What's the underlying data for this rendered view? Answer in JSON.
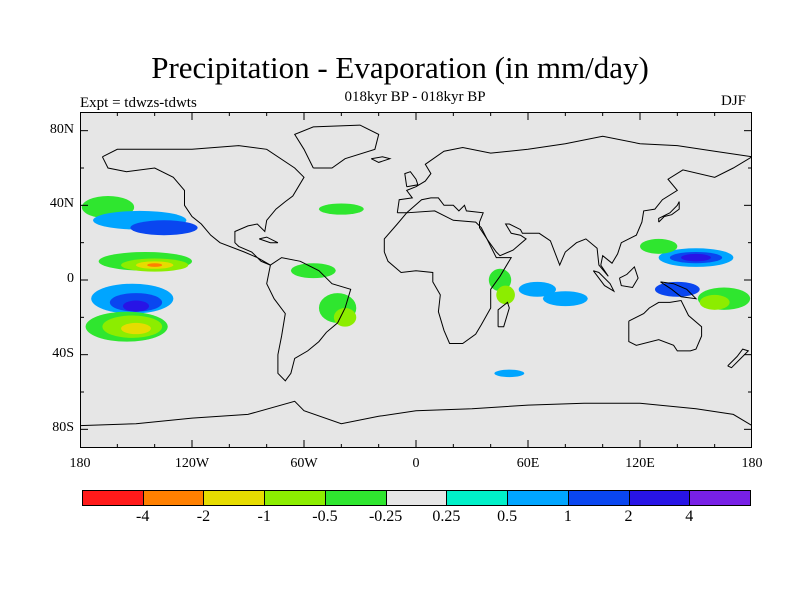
{
  "figure": {
    "title": "Precipitation - Evaporation (in mm/day)",
    "subtitle": "018kyr BP - 018kyr BP",
    "experiment": "Expt = tdwzs-tdwts",
    "season": "DJF"
  },
  "axes": {
    "lon_labels": [
      {
        "lon": -180,
        "text": "180"
      },
      {
        "lon": -120,
        "text": "120W"
      },
      {
        "lon": -60,
        "text": "60W"
      },
      {
        "lon": 0,
        "text": "0"
      },
      {
        "lon": 60,
        "text": "60E"
      },
      {
        "lon": 120,
        "text": "120E"
      },
      {
        "lon": 180,
        "text": "180"
      }
    ],
    "lat_labels": [
      {
        "lat": 80,
        "text": "80N"
      },
      {
        "lat": 40,
        "text": "40N"
      },
      {
        "lat": 0,
        "text": "0"
      },
      {
        "lat": -40,
        "text": "40S"
      },
      {
        "lat": -80,
        "text": "80S"
      }
    ],
    "lon_range": [
      -180,
      180
    ],
    "lat_range": [
      -90,
      90
    ]
  },
  "colorbar": {
    "colors": [
      "#ff1a1a",
      "#ff8000",
      "#e6dc00",
      "#8ced00",
      "#2fe62f",
      "#e6e6e6",
      "#00f0c8",
      "#00a5ff",
      "#0a46f0",
      "#2814e6",
      "#7820e6"
    ],
    "labels": [
      "-4",
      "-2",
      "-1",
      "-0.5",
      "-0.25",
      "0.25",
      "0.5",
      "1",
      "2",
      "4"
    ]
  },
  "chart_data": {
    "type": "heatmap",
    "title": "Precipitation - Evaporation (in mm/day)",
    "subtitle": "018kyr BP - 018kyr BP",
    "season": "DJF",
    "levels": [
      -4,
      -2,
      -1,
      -0.5,
      -0.25,
      0.25,
      0.5,
      1,
      2,
      4
    ],
    "regions": [
      {
        "lon": -165,
        "lat": 39,
        "rlon": 14,
        "rlat": 6,
        "value": -0.5
      },
      {
        "lon": -148,
        "lat": 32,
        "rlon": 25,
        "rlat": 5,
        "value": 0.5
      },
      {
        "lon": -135,
        "lat": 28,
        "rlon": 18,
        "rlat": 4,
        "value": 1
      },
      {
        "lon": -145,
        "lat": 10,
        "rlon": 25,
        "rlat": 5,
        "value": -0.5
      },
      {
        "lon": -140,
        "lat": 8,
        "rlon": 18,
        "rlat": 3.5,
        "value": -1
      },
      {
        "lon": -140,
        "lat": 8,
        "rlon": 10,
        "rlat": 2,
        "value": -2
      },
      {
        "lon": -140,
        "lat": 8,
        "rlon": 4,
        "rlat": 1,
        "value": -4
      },
      {
        "lon": -152,
        "lat": -10,
        "rlon": 22,
        "rlat": 8,
        "value": 0.5
      },
      {
        "lon": -150,
        "lat": -12,
        "rlon": 14,
        "rlat": 5,
        "value": 1
      },
      {
        "lon": -150,
        "lat": -14,
        "rlon": 7,
        "rlat": 3,
        "value": 2
      },
      {
        "lon": -155,
        "lat": -25,
        "rlon": 22,
        "rlat": 8,
        "value": -0.5
      },
      {
        "lon": -152,
        "lat": -25,
        "rlon": 16,
        "rlat": 6,
        "value": -1
      },
      {
        "lon": -150,
        "lat": -26,
        "rlon": 8,
        "rlat": 3,
        "value": -2
      },
      {
        "lon": -42,
        "lat": -15,
        "rlon": 10,
        "rlat": 8,
        "value": -0.5
      },
      {
        "lon": -38,
        "lat": -20,
        "rlon": 6,
        "rlat": 5,
        "value": -1
      },
      {
        "lon": -55,
        "lat": 5,
        "rlon": 12,
        "rlat": 4,
        "value": -0.5
      },
      {
        "lon": -40,
        "lat": 38,
        "rlon": 12,
        "rlat": 3,
        "value": -0.5
      },
      {
        "lon": 45,
        "lat": 0,
        "rlon": 6,
        "rlat": 6,
        "value": -0.5
      },
      {
        "lon": 48,
        "lat": -8,
        "rlon": 5,
        "rlat": 5,
        "value": -1
      },
      {
        "lon": 65,
        "lat": -5,
        "rlon": 10,
        "rlat": 4,
        "value": 0.5
      },
      {
        "lon": 80,
        "lat": -10,
        "rlon": 12,
        "rlat": 4,
        "value": 0.5
      },
      {
        "lon": 150,
        "lat": 12,
        "rlon": 20,
        "rlat": 5,
        "value": 0.5
      },
      {
        "lon": 150,
        "lat": 12,
        "rlon": 14,
        "rlat": 3,
        "value": 1
      },
      {
        "lon": 150,
        "lat": 12,
        "rlon": 8,
        "rlat": 2,
        "value": 2
      },
      {
        "lon": 130,
        "lat": 18,
        "rlon": 10,
        "rlat": 4,
        "value": -0.5
      },
      {
        "lon": 165,
        "lat": -10,
        "rlon": 14,
        "rlat": 6,
        "value": -0.5
      },
      {
        "lon": 160,
        "lat": -12,
        "rlon": 8,
        "rlat": 4,
        "value": -1
      },
      {
        "lon": 140,
        "lat": -5,
        "rlon": 12,
        "rlat": 4,
        "value": 1
      },
      {
        "lon": 50,
        "lat": -50,
        "rlon": 8,
        "rlat": 2,
        "value": 0.5
      }
    ]
  },
  "coastlines": {
    "north_america": [
      [
        -168,
        66
      ],
      [
        -160,
        70
      ],
      [
        -140,
        70
      ],
      [
        -120,
        70
      ],
      [
        -95,
        72
      ],
      [
        -80,
        70
      ],
      [
        -65,
        60
      ],
      [
        -60,
        55
      ],
      [
        -66,
        45
      ],
      [
        -70,
        42
      ],
      [
        -75,
        38
      ],
      [
        -80,
        32
      ],
      [
        -81,
        26
      ],
      [
        -85,
        30
      ],
      [
        -90,
        29
      ],
      [
        -97,
        26
      ],
      [
        -97,
        20
      ],
      [
        -95,
        18
      ],
      [
        -88,
        15
      ],
      [
        -83,
        10
      ],
      [
        -78,
        8
      ],
      [
        -85,
        12
      ],
      [
        -92,
        15
      ],
      [
        -105,
        20
      ],
      [
        -110,
        24
      ],
      [
        -115,
        30
      ],
      [
        -120,
        34
      ],
      [
        -124,
        40
      ],
      [
        -124,
        48
      ],
      [
        -130,
        55
      ],
      [
        -140,
        60
      ],
      [
        -155,
        58
      ],
      [
        -165,
        60
      ],
      [
        -168,
        66
      ]
    ],
    "greenland": [
      [
        -55,
        60
      ],
      [
        -45,
        60
      ],
      [
        -38,
        65
      ],
      [
        -22,
        70
      ],
      [
        -20,
        78
      ],
      [
        -30,
        83
      ],
      [
        -55,
        82
      ],
      [
        -65,
        78
      ],
      [
        -60,
        70
      ],
      [
        -55,
        60
      ]
    ],
    "south_america": [
      [
        -78,
        8
      ],
      [
        -72,
        12
      ],
      [
        -62,
        10
      ],
      [
        -52,
        5
      ],
      [
        -45,
        -2
      ],
      [
        -35,
        -5
      ],
      [
        -38,
        -15
      ],
      [
        -42,
        -23
      ],
      [
        -48,
        -28
      ],
      [
        -52,
        -33
      ],
      [
        -58,
        -38
      ],
      [
        -65,
        -42
      ],
      [
        -67,
        -50
      ],
      [
        -70,
        -54
      ],
      [
        -74,
        -50
      ],
      [
        -74,
        -40
      ],
      [
        -72,
        -30
      ],
      [
        -70,
        -18
      ],
      [
        -76,
        -10
      ],
      [
        -80,
        -2
      ],
      [
        -78,
        8
      ]
    ],
    "africa": [
      [
        -17,
        15
      ],
      [
        -17,
        22
      ],
      [
        -10,
        30
      ],
      [
        -5,
        36
      ],
      [
        10,
        37
      ],
      [
        20,
        32
      ],
      [
        32,
        31
      ],
      [
        35,
        28
      ],
      [
        43,
        12
      ],
      [
        51,
        12
      ],
      [
        45,
        2
      ],
      [
        40,
        -5
      ],
      [
        40,
        -15
      ],
      [
        35,
        -24
      ],
      [
        32,
        -29
      ],
      [
        25,
        -34
      ],
      [
        18,
        -34
      ],
      [
        15,
        -27
      ],
      [
        12,
        -17
      ],
      [
        13,
        -8
      ],
      [
        9,
        -1
      ],
      [
        9,
        4
      ],
      [
        0,
        5
      ],
      [
        -8,
        4
      ],
      [
        -15,
        10
      ],
      [
        -17,
        15
      ]
    ],
    "eurasia": [
      [
        -10,
        36
      ],
      [
        -9,
        43
      ],
      [
        -2,
        44
      ],
      [
        -5,
        48
      ],
      [
        0,
        50
      ],
      [
        5,
        53
      ],
      [
        8,
        57
      ],
      [
        5,
        62
      ],
      [
        15,
        69
      ],
      [
        25,
        71
      ],
      [
        40,
        68
      ],
      [
        60,
        70
      ],
      [
        80,
        73
      ],
      [
        100,
        77
      ],
      [
        120,
        73
      ],
      [
        140,
        72
      ],
      [
        160,
        69
      ],
      [
        180,
        66
      ],
      [
        170,
        60
      ],
      [
        160,
        55
      ],
      [
        143,
        59
      ],
      [
        135,
        54
      ],
      [
        140,
        48
      ],
      [
        132,
        43
      ],
      [
        128,
        38
      ],
      [
        122,
        37
      ],
      [
        121,
        31
      ],
      [
        118,
        24
      ],
      [
        110,
        20
      ],
      [
        108,
        14
      ],
      [
        105,
        9
      ],
      [
        100,
        13
      ],
      [
        99,
        8
      ],
      [
        103,
        2
      ],
      [
        98,
        8
      ],
      [
        97,
        17
      ],
      [
        91,
        22
      ],
      [
        86,
        20
      ],
      [
        80,
        15
      ],
      [
        77,
        8
      ],
      [
        72,
        21
      ],
      [
        66,
        25
      ],
      [
        57,
        25
      ],
      [
        56,
        27
      ],
      [
        50,
        30
      ],
      [
        48,
        30
      ],
      [
        51,
        25
      ],
      [
        56,
        24
      ],
      [
        59,
        22
      ],
      [
        52,
        16
      ],
      [
        45,
        13
      ],
      [
        43,
        15
      ],
      [
        38,
        22
      ],
      [
        34,
        28
      ],
      [
        34,
        31
      ],
      [
        36,
        36
      ],
      [
        27,
        37
      ],
      [
        26,
        40
      ],
      [
        23,
        37
      ],
      [
        20,
        40
      ],
      [
        15,
        40
      ],
      [
        12,
        44
      ],
      [
        8,
        44
      ],
      [
        3,
        43
      ],
      [
        -5,
        36
      ],
      [
        -10,
        36
      ]
    ],
    "australia": [
      [
        114,
        -22
      ],
      [
        114,
        -33
      ],
      [
        118,
        -35
      ],
      [
        130,
        -32
      ],
      [
        138,
        -35
      ],
      [
        140,
        -38
      ],
      [
        147,
        -38
      ],
      [
        150,
        -37
      ],
      [
        153,
        -30
      ],
      [
        153,
        -25
      ],
      [
        146,
        -19
      ],
      [
        142,
        -11
      ],
      [
        136,
        -12
      ],
      [
        130,
        -12
      ],
      [
        125,
        -15
      ],
      [
        122,
        -18
      ],
      [
        114,
        -22
      ]
    ],
    "antarctica": [
      [
        -180,
        -78
      ],
      [
        -150,
        -77
      ],
      [
        -120,
        -74
      ],
      [
        -90,
        -72
      ],
      [
        -65,
        -65
      ],
      [
        -60,
        -70
      ],
      [
        -40,
        -77
      ],
      [
        -20,
        -73
      ],
      [
        0,
        -70
      ],
      [
        30,
        -69
      ],
      [
        60,
        -67
      ],
      [
        90,
        -66
      ],
      [
        120,
        -66
      ],
      [
        150,
        -69
      ],
      [
        170,
        -72
      ],
      [
        180,
        -78
      ]
    ],
    "uk": [
      [
        -5,
        50
      ],
      [
        1,
        51
      ],
      [
        0,
        54
      ],
      [
        -3,
        58
      ],
      [
        -6,
        57
      ],
      [
        -5,
        50
      ]
    ],
    "japan": [
      [
        130,
        31
      ],
      [
        133,
        34
      ],
      [
        137,
        35
      ],
      [
        141,
        38
      ],
      [
        141,
        42
      ],
      [
        140,
        40
      ],
      [
        136,
        36
      ],
      [
        130,
        33
      ],
      [
        130,
        31
      ]
    ],
    "madagascar": [
      [
        44,
        -25
      ],
      [
        47,
        -25
      ],
      [
        50,
        -15
      ],
      [
        49,
        -12
      ],
      [
        44,
        -16
      ],
      [
        44,
        -25
      ]
    ],
    "new_zealand": [
      [
        167,
        -46
      ],
      [
        172,
        -41
      ],
      [
        175,
        -37
      ],
      [
        178,
        -38
      ],
      [
        174,
        -42
      ],
      [
        169,
        -47
      ],
      [
        167,
        -46
      ]
    ],
    "borneo": [
      [
        109,
        1
      ],
      [
        113,
        3
      ],
      [
        117,
        7
      ],
      [
        119,
        1
      ],
      [
        116,
        -4
      ],
      [
        110,
        -3
      ],
      [
        109,
        1
      ]
    ],
    "sumatra": [
      [
        95,
        5
      ],
      [
        98,
        4
      ],
      [
        104,
        -2
      ],
      [
        106,
        -6
      ],
      [
        101,
        -3
      ],
      [
        95,
        5
      ]
    ],
    "new_guinea": [
      [
        131,
        -1
      ],
      [
        138,
        -2
      ],
      [
        145,
        -5
      ],
      [
        150,
        -10
      ],
      [
        142,
        -9
      ],
      [
        137,
        -5
      ],
      [
        131,
        -1
      ]
    ],
    "iceland": [
      [
        -24,
        65
      ],
      [
        -18,
        66
      ],
      [
        -14,
        65
      ],
      [
        -20,
        63
      ],
      [
        -24,
        65
      ]
    ],
    "cuba": [
      [
        -84,
        22
      ],
      [
        -80,
        23
      ],
      [
        -74,
        20
      ],
      [
        -78,
        20
      ],
      [
        -84,
        22
      ]
    ]
  }
}
